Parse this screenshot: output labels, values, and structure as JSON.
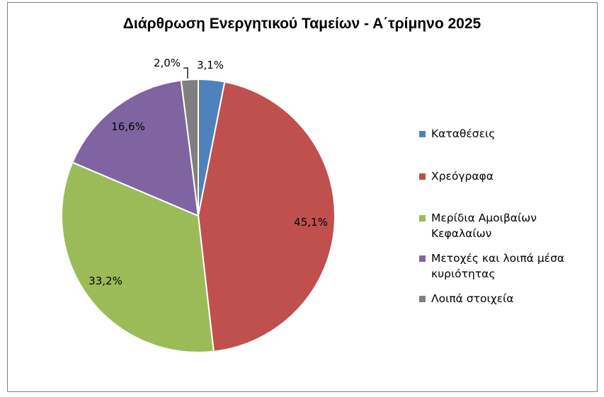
{
  "chart_data": {
    "type": "pie",
    "title": "Διάρθρωση Ενεργητικού Ταμείων - Α΄τρίμηνο 2025",
    "categories": [
      "Καταθέσεις",
      "Χρεόγραφα",
      "Μερίδια Αμοιβαίων Κεφαλαίων",
      "Μετοχές και λοιπά μέσα κυριότητας",
      "Λοιπά στοιχεία"
    ],
    "values": [
      3.1,
      45.1,
      33.2,
      16.6,
      2.0
    ],
    "value_labels": [
      "3,1%",
      "45,1%",
      "33,2%",
      "16,6%",
      "2,0%"
    ],
    "colors": [
      "#4f81bd",
      "#c0504d",
      "#9bbb59",
      "#8064a2",
      "#7f7f7f"
    ],
    "legend_position": "right"
  }
}
